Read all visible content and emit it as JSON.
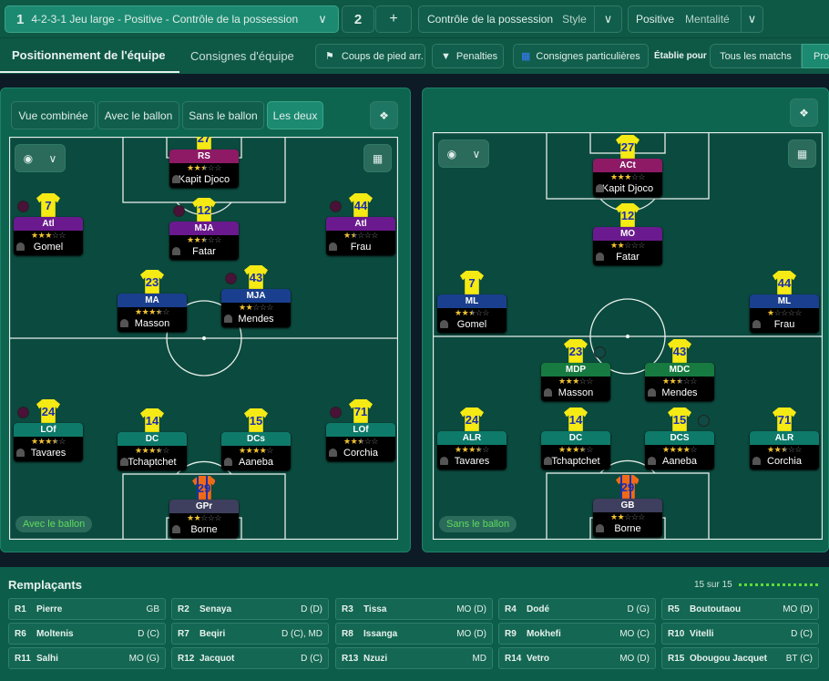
{
  "topbar": {
    "tactic_slot": "1",
    "tactic_name": "4-2-3-1 Jeu large - Positive - Contrôle de la possession",
    "slot2": "2",
    "add": "+",
    "style_value": "Contrôle de la possession",
    "style_label": "Style",
    "mentality_value": "Positive",
    "mentality_label": "Mentalité"
  },
  "tabs": {
    "positioning": "Positionnement de l'équipe",
    "instructions": "Consignes d'équipe",
    "set_pieces": "Coups de pied arr.",
    "penalties": "Penalties",
    "special": "Consignes particulières",
    "set_for": "Établie pour",
    "all_matches": "Tous les matchs",
    "next": "Pro"
  },
  "view_buttons": [
    "Vue combinée",
    "Avec le ballon",
    "Sans le ballon",
    "Les deux"
  ],
  "left_pitch": {
    "label": "Avec le ballon",
    "players": [
      {
        "role": "RS",
        "num": "27",
        "name": "Kapit Djoco",
        "stars": 2.5,
        "color": "#8e1a66"
      },
      {
        "role": "Atl",
        "num": "7",
        "name": "Gomel",
        "stars": 3,
        "color": "#6a1a8e",
        "marker": true
      },
      {
        "role": "MJA",
        "num": "12",
        "name": "Fatar",
        "stars": 2.5,
        "color": "#6a1a8e",
        "marker": true
      },
      {
        "role": "Atl",
        "num": "44",
        "name": "Frau",
        "stars": 1.5,
        "color": "#6a1a8e",
        "marker": true
      },
      {
        "role": "MA",
        "num": "23",
        "name": "Masson",
        "stars": 3.5,
        "color": "#1a3f8e"
      },
      {
        "role": "MJA",
        "num": "43",
        "name": "Mendes",
        "stars": 2,
        "color": "#1a3f8e",
        "marker": true
      },
      {
        "role": "LOf",
        "num": "24",
        "name": "Tavares",
        "stars": 3.5,
        "color": "#0e7a6a",
        "marker": true
      },
      {
        "role": "DC",
        "num": "14",
        "name": "Tchaptchet",
        "stars": 3.5,
        "color": "#0e7a6a"
      },
      {
        "role": "DCs",
        "num": "15",
        "name": "Aaneba",
        "stars": 4,
        "color": "#0e7a6a"
      },
      {
        "role": "LOf",
        "num": "71",
        "name": "Corchia",
        "stars": 2.5,
        "color": "#0e7a6a",
        "marker": true
      },
      {
        "role": "GPr",
        "num": "29",
        "name": "Borne",
        "stars": 2,
        "color": "#3e3e5e",
        "gk": true
      }
    ]
  },
  "right_pitch": {
    "label": "Sans le ballon",
    "players": [
      {
        "role": "ACt",
        "num": "27",
        "name": "Kapit Djoco",
        "stars": 3,
        "color": "#8e1a66"
      },
      {
        "role": "MO",
        "num": "12",
        "name": "Fatar",
        "stars": 2,
        "color": "#6a1a8e"
      },
      {
        "role": "ML",
        "num": "7",
        "name": "Gomel",
        "stars": 2.5,
        "color": "#1a3f8e"
      },
      {
        "role": "ML",
        "num": "44",
        "name": "Frau",
        "stars": 1,
        "color": "#1a3f8e"
      },
      {
        "role": "MDP",
        "num": "23",
        "name": "Masson",
        "stars": 3,
        "color": "#177a40",
        "marker": true
      },
      {
        "role": "MDC",
        "num": "43",
        "name": "Mendes",
        "stars": 2.5,
        "color": "#177a40"
      },
      {
        "role": "ALR",
        "num": "24",
        "name": "Tavares",
        "stars": 3.5,
        "color": "#0e7a6a"
      },
      {
        "role": "DC",
        "num": "14",
        "name": "Tchaptchet",
        "stars": 3.5,
        "color": "#0e7a6a"
      },
      {
        "role": "DCS",
        "num": "15",
        "name": "Aaneba",
        "stars": 4,
        "color": "#0e7a6a",
        "marker": true
      },
      {
        "role": "ALR",
        "num": "71",
        "name": "Corchia",
        "stars": 2.5,
        "color": "#0e7a6a"
      },
      {
        "role": "GB",
        "num": "29",
        "name": "Borne",
        "stars": 2,
        "color": "#3e3e5e",
        "gk": true
      }
    ]
  },
  "subs": {
    "title": "Remplaçants",
    "count": "15 sur 15",
    "items": [
      {
        "n": "R1",
        "name": "Pierre",
        "pos": "GB"
      },
      {
        "n": "R2",
        "name": "Senaya",
        "pos": "D (D)"
      },
      {
        "n": "R3",
        "name": "Tissa",
        "pos": "MO (D)"
      },
      {
        "n": "R4",
        "name": "Dodé",
        "pos": "D (G)"
      },
      {
        "n": "R5",
        "name": "Boutoutaou",
        "pos": "MO (D)"
      },
      {
        "n": "R6",
        "name": "Moltenis",
        "pos": "D (C)"
      },
      {
        "n": "R7",
        "name": "Beqiri",
        "pos": "D (C), MD"
      },
      {
        "n": "R8",
        "name": "Issanga",
        "pos": "MO (D)"
      },
      {
        "n": "R9",
        "name": "Mokhefi",
        "pos": "MO (C)"
      },
      {
        "n": "R10",
        "name": "Vitelli",
        "pos": "D (C)"
      },
      {
        "n": "R11",
        "name": "Salhi",
        "pos": "MO (G)"
      },
      {
        "n": "R12",
        "name": "Jacquot",
        "pos": "D (C)"
      },
      {
        "n": "R13",
        "name": "Nzuzi",
        "pos": "MD"
      },
      {
        "n": "R14",
        "name": "Vetro",
        "pos": "MO (D)"
      },
      {
        "n": "R15",
        "name": "Obougou Jacquet",
        "pos": "BT (C)"
      }
    ]
  },
  "colors": {
    "accent": "#1b8a71",
    "pitch": "#0b4a3e",
    "with_ball_marker": "#5a1a44",
    "without_ball_marker": "#0f4a44",
    "star": "#f2c230"
  }
}
